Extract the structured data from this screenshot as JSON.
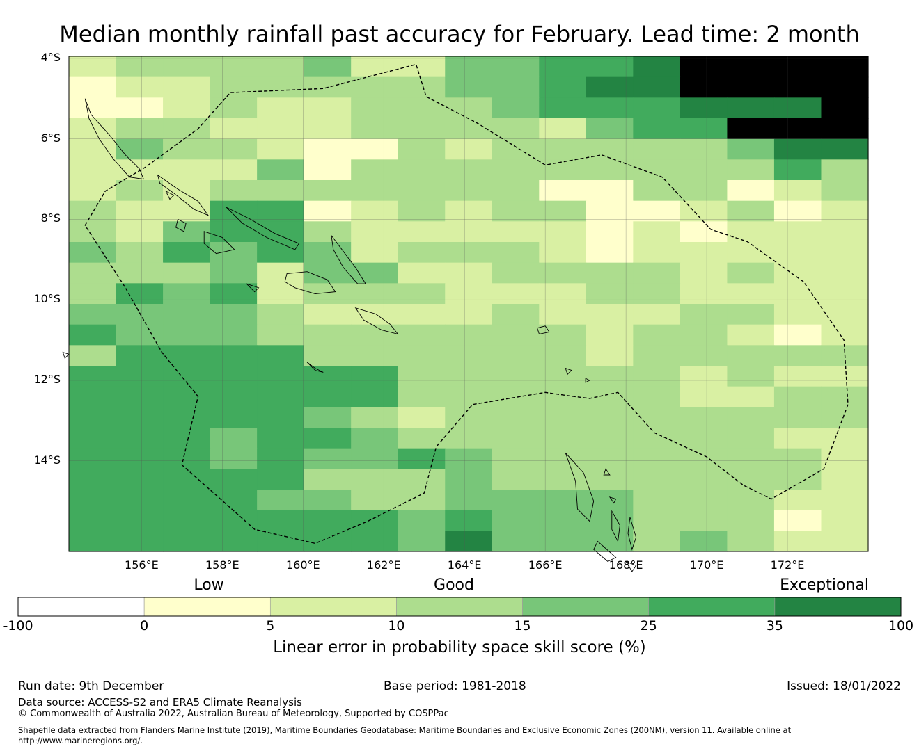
{
  "title": "Median monthly rainfall past accuracy for February. Lead time: 2 month",
  "map": {
    "lat_labels": [
      "4°S",
      "6°S",
      "8°S",
      "10°S",
      "12°S",
      "14°S"
    ],
    "lon_labels": [
      "156°E",
      "158°E",
      "160°E",
      "162°E",
      "164°E",
      "166°E",
      "168°E",
      "170°E",
      "172°E"
    ],
    "lat_range": [
      -16.25,
      -3.95
    ],
    "lon_range": [
      154.2,
      174.0
    ],
    "eez_boundary_style": "dashed",
    "grid_rows": [
      "12222311334456666",
      "01122222334556666",
      "00121122234445556",
      "12211122221344666",
      "13221002122222355",
      "11113022222222242",
      "12122222220022012",
      "21144012122001201",
      "21344211111010111",
      "32434312221011111",
      "22231331122221211",
      "24341222111221111",
      "33332111121112211",
      "43332222222122101",
      "24444222222122222",
      "44444442222221211",
      "44444442222221122",
      "44444321222222222",
      "44434432222222211",
      "44434334322222221",
      "44444222322222221",
      "44443322333322211",
      "44444443433322201",
      "44444443533323211"
    ]
  },
  "colorbar": {
    "categories": [
      "Low",
      "Good",
      "Exceptional"
    ],
    "ticks": [
      "-100",
      "0",
      "5",
      "10",
      "15",
      "25",
      "35",
      "100"
    ],
    "colors": [
      "#ffffff",
      "#ffffcc",
      "#d9f0a3",
      "#addd8e",
      "#78c679",
      "#41ab5d",
      "#238443"
    ],
    "title": "Linear error in probability space skill score (%)"
  },
  "footer": {
    "run_date": "Run date: 9th December",
    "base_period": "Base period: 1981-2018",
    "issued": "Issued: 18/01/2022",
    "data_source": "Data source: ACCESS-S2 and ERA5 Climate Reanalysis",
    "copyright": "© Commonwealth of Australia 2022, Australian Bureau of Meteorology, Supported by COSPPac",
    "shapefile_line1": "Shapefile data extracted from Flanders Marine Institute (2019), Maritime Boundaries Geodatabase: Maritime Boundaries and Exclusive Economic Zones (200NM), version 11. Available online at",
    "shapefile_line2": "http://www.marineregions.org/."
  }
}
